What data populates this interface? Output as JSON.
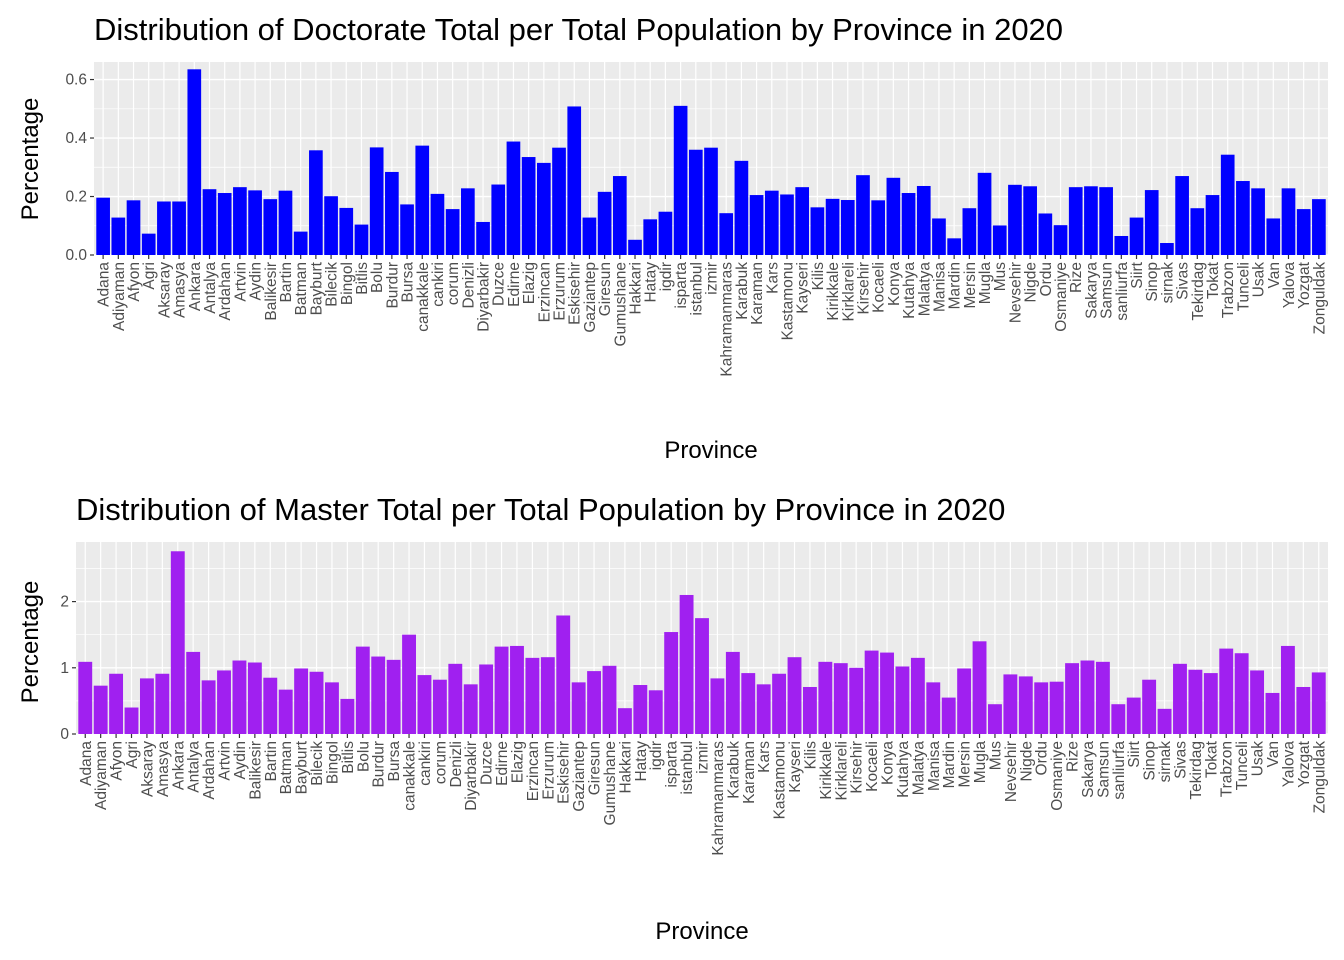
{
  "chart_data": [
    {
      "type": "bar",
      "title": "Distribution of Doctorate Total per Total Population by Province in 2020",
      "xlabel": "Province",
      "ylabel": "Percentage",
      "ylim": [
        0,
        0.66
      ],
      "yticks": [
        0.0,
        0.2,
        0.4,
        0.6
      ],
      "ytick_labels": [
        "0.0",
        "0.2",
        "0.4",
        "0.6"
      ],
      "grid": true,
      "bar_color": "#0000ff",
      "panel_bg": "#ebebeb",
      "categories": [
        "Adana",
        "Adiyaman",
        "Afyon",
        "Agri",
        "Aksaray",
        "Amasya",
        "Ankara",
        "Antalya",
        "Ardahan",
        "Artvin",
        "Aydin",
        "Balikesir",
        "Bartin",
        "Batman",
        "Bayburt",
        "Bilecik",
        "Bingol",
        "Bitlis",
        "Bolu",
        "Burdur",
        "Bursa",
        "canakkale",
        "cankiri",
        "corum",
        "Denizli",
        "Diyarbakir",
        "Duzce",
        "Edirne",
        "Elazig",
        "Erzincan",
        "Erzurum",
        "Eskisehir",
        "Gaziantep",
        "Giresun",
        "Gumushane",
        "Hakkari",
        "Hatay",
        "igdir",
        "isparta",
        "istanbul",
        "izmir",
        "Kahramanmaras",
        "Karabuk",
        "Karaman",
        "Kars",
        "Kastamonu",
        "Kayseri",
        "Kilis",
        "Kirikkale",
        "Kirklareli",
        "Kirsehir",
        "Kocaeli",
        "Konya",
        "Kutahya",
        "Malatya",
        "Manisa",
        "Mardin",
        "Mersin",
        "Mugla",
        "Mus",
        "Nevsehir",
        "Nigde",
        "Ordu",
        "Osmaniye",
        "Rize",
        "Sakarya",
        "Samsun",
        "sanliurfa",
        "Siirt",
        "Sinop",
        "sirnak",
        "Sivas",
        "Tekirdag",
        "Tokat",
        "Trabzon",
        "Tunceli",
        "Usak",
        "Van",
        "Yalova",
        "Yozgat",
        "Zonguldak"
      ],
      "values": [
        0.196,
        0.128,
        0.187,
        0.073,
        0.183,
        0.183,
        0.635,
        0.225,
        0.212,
        0.232,
        0.221,
        0.191,
        0.22,
        0.08,
        0.358,
        0.201,
        0.161,
        0.104,
        0.368,
        0.284,
        0.173,
        0.374,
        0.209,
        0.157,
        0.228,
        0.113,
        0.241,
        0.388,
        0.335,
        0.315,
        0.367,
        0.508,
        0.128,
        0.216,
        0.27,
        0.052,
        0.122,
        0.148,
        0.51,
        0.36,
        0.367,
        0.143,
        0.322,
        0.205,
        0.22,
        0.207,
        0.232,
        0.163,
        0.192,
        0.188,
        0.273,
        0.187,
        0.264,
        0.212,
        0.236,
        0.125,
        0.057,
        0.16,
        0.281,
        0.101,
        0.24,
        0.235,
        0.142,
        0.102,
        0.232,
        0.235,
        0.232,
        0.065,
        0.128,
        0.222,
        0.041,
        0.27,
        0.16,
        0.205,
        0.343,
        0.253,
        0.228,
        0.125,
        0.228,
        0.157,
        0.191
      ]
    },
    {
      "type": "bar",
      "title": "Distribution of Master Total per Total Population by Province in 2020",
      "xlabel": "Province",
      "ylabel": "Percentage",
      "ylim": [
        0,
        2.9
      ],
      "yticks": [
        0,
        1,
        2
      ],
      "ytick_labels": [
        "0",
        "1",
        "2"
      ],
      "grid": true,
      "bar_color": "#a020f0",
      "panel_bg": "#ebebeb",
      "categories": [
        "Adana",
        "Adiyaman",
        "Afyon",
        "Agri",
        "Aksaray",
        "Amasya",
        "Ankara",
        "Antalya",
        "Ardahan",
        "Artvin",
        "Aydin",
        "Balikesir",
        "Bartin",
        "Batman",
        "Bayburt",
        "Bilecik",
        "Bingol",
        "Bitlis",
        "Bolu",
        "Burdur",
        "Bursa",
        "canakkale",
        "cankiri",
        "corum",
        "Denizli",
        "Diyarbakir",
        "Duzce",
        "Edirne",
        "Elazig",
        "Erzincan",
        "Erzurum",
        "Eskisehir",
        "Gaziantep",
        "Giresun",
        "Gumushane",
        "Hakkari",
        "Hatay",
        "igdir",
        "isparta",
        "istanbul",
        "izmir",
        "Kahramanmaras",
        "Karabuk",
        "Karaman",
        "Kars",
        "Kastamonu",
        "Kayseri",
        "Kilis",
        "Kirikkale",
        "Kirklareli",
        "Kirsehir",
        "Kocaeli",
        "Konya",
        "Kutahya",
        "Malatya",
        "Manisa",
        "Mardin",
        "Mersin",
        "Mugla",
        "Mus",
        "Nevsehir",
        "Nigde",
        "Ordu",
        "Osmaniye",
        "Rize",
        "Sakarya",
        "Samsun",
        "sanliurfa",
        "Siirt",
        "Sinop",
        "sirnak",
        "Sivas",
        "Tekirdag",
        "Tokat",
        "Trabzon",
        "Tunceli",
        "Usak",
        "Van",
        "Yalova",
        "Yozgat",
        "Zonguldak"
      ],
      "values": [
        1.09,
        0.73,
        0.91,
        0.4,
        0.84,
        0.91,
        2.76,
        1.24,
        0.81,
        0.96,
        1.11,
        1.08,
        0.85,
        0.67,
        0.99,
        0.94,
        0.78,
        0.53,
        1.32,
        1.17,
        1.12,
        1.5,
        0.89,
        0.82,
        1.06,
        0.75,
        1.05,
        1.32,
        1.33,
        1.15,
        1.16,
        1.79,
        0.78,
        0.95,
        1.03,
        0.39,
        0.74,
        0.66,
        1.54,
        2.1,
        1.75,
        0.84,
        1.24,
        0.92,
        0.75,
        0.91,
        1.16,
        0.71,
        1.09,
        1.07,
        1.0,
        1.26,
        1.23,
        1.02,
        1.15,
        0.78,
        0.55,
        0.99,
        1.4,
        0.45,
        0.9,
        0.87,
        0.78,
        0.79,
        1.07,
        1.11,
        1.09,
        0.45,
        0.55,
        0.82,
        0.38,
        1.06,
        0.97,
        0.92,
        1.29,
        1.22,
        0.96,
        0.62,
        1.33,
        0.71,
        0.93
      ]
    }
  ]
}
